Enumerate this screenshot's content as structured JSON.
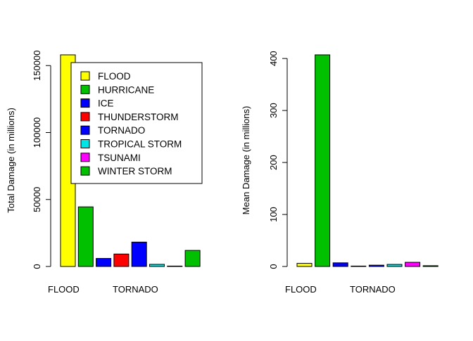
{
  "chart_data": [
    {
      "type": "bar",
      "ylabel": "Total Damage (in millions)",
      "categories": [
        "FLOOD",
        "HURRICANE",
        "ICE",
        "THUNDERSTORM",
        "TORNADO",
        "TROPICAL STORM",
        "TSUNAMI",
        "WINTER STORM"
      ],
      "visible_category_labels": [
        "FLOOD",
        "TORNADO"
      ],
      "values": [
        158000,
        44500,
        6000,
        9300,
        18200,
        1600,
        300,
        12000
      ],
      "colors": [
        "#ffff00",
        "#00c000",
        "#0000ff",
        "#ff0000",
        "#0000ff",
        "#00e5e5",
        "#ff00ff",
        "#00c000"
      ],
      "ylim": [
        0,
        158000
      ],
      "yticks": [
        0,
        50000,
        100000,
        150000
      ],
      "legend": {
        "placement": "top-right",
        "entries": [
          "FLOOD",
          "HURRICANE",
          "ICE",
          "THUNDERSTORM",
          "TORNADO",
          "TROPICAL STORM",
          "TSUNAMI",
          "WINTER STORM"
        ]
      },
      "grid": false
    },
    {
      "type": "bar",
      "ylabel": "Mean Damage (in millions)",
      "categories": [
        "FLOOD",
        "HURRICANE",
        "ICE",
        "THUNDERSTORM",
        "TORNADO",
        "TROPICAL STORM",
        "TSUNAMI",
        "WINTER STORM"
      ],
      "visible_category_labels": [
        "FLOOD",
        "TORNADO"
      ],
      "values": [
        6,
        407,
        7,
        0.5,
        2.5,
        4,
        8,
        1.5
      ],
      "colors": [
        "#ffff00",
        "#00c000",
        "#0000ff",
        "#ff0000",
        "#0000ff",
        "#00e5e5",
        "#ff00ff",
        "#00c000"
      ],
      "ylim": [
        0,
        407
      ],
      "yticks": [
        0,
        100,
        200,
        300,
        400
      ],
      "grid": false
    }
  ]
}
